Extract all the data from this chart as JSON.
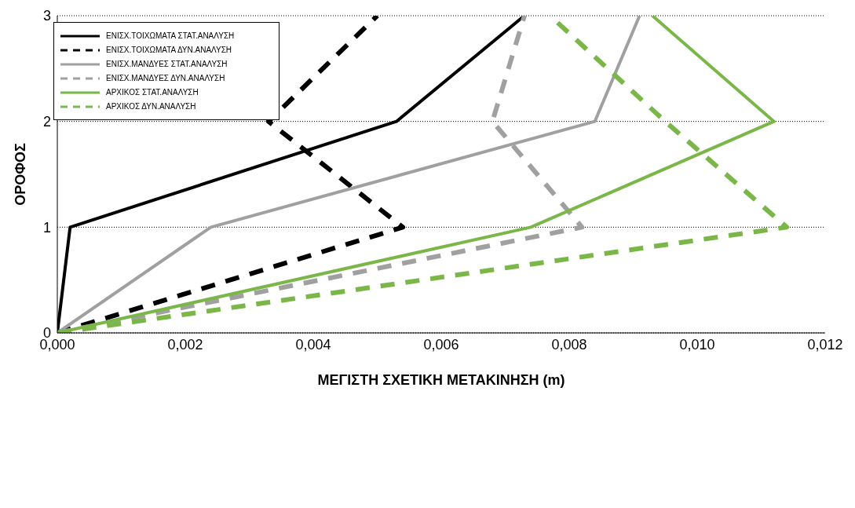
{
  "chart_data": {
    "type": "line",
    "xlabel": "ΜΕΓΙΣΤΗ  ΣΧΕΤΙΚΗ ΜΕΤΑΚΙΝΗΣΗ (m)",
    "ylabel": "ΟΡΟΦΟΣ",
    "xlim": [
      0,
      0.012
    ],
    "xticks": [
      {
        "value": 0,
        "label": "0,000"
      },
      {
        "value": 0.002,
        "label": "0,002"
      },
      {
        "value": 0.004,
        "label": "0,004"
      },
      {
        "value": 0.006,
        "label": "0,006"
      },
      {
        "value": 0.008,
        "label": "0,008"
      },
      {
        "value": 0.01,
        "label": "0,010"
      },
      {
        "value": 0.012,
        "label": "0,012"
      }
    ],
    "ylim": [
      0,
      3
    ],
    "yticks": [
      0,
      1,
      2,
      3
    ],
    "grid": "y",
    "legend": "top left",
    "marker": "none",
    "series": [
      {
        "name": "ΕΝΙΣΧ.ΤΟΙΧΩΜΑΤΑ ΣΤΑΤ.ΑΝΑΛΥΣΗ",
        "color": "#000000",
        "line_style": "solid",
        "x": [
          0,
          0.0002,
          0.0053,
          0.0073
        ],
        "values": [
          0,
          1,
          2,
          3
        ]
      },
      {
        "name": "ΕΝΙΣΧ.ΤΟΙΧΩΜΑΤΑ ΔΥΝ.ΑΝΑΛΥΣΗ",
        "color": "#000000",
        "line_style": "dashed",
        "x": [
          0,
          0.0054,
          0.0033,
          0.005
        ],
        "values": [
          0,
          1,
          2,
          3
        ]
      },
      {
        "name": "ΕΝΙΣΧ.ΜΑΝΔΥΕΣ ΣΤΑΤ.ΑΝΑΛΥΣΗ",
        "color": "#a0a0a0",
        "line_style": "solid",
        "x": [
          0,
          0.0024,
          0.0084,
          0.0091
        ],
        "values": [
          0,
          1,
          2,
          3
        ]
      },
      {
        "name": "ΕΝΙΣΧ.ΜΑΝΔΥΕΣ ΔΥΝ.ΑΝΑΛΥΣΗ",
        "color": "#a0a0a0",
        "line_style": "dashed",
        "x": [
          0,
          0.0082,
          0.0068,
          0.0073
        ],
        "values": [
          0,
          1,
          2,
          3
        ]
      },
      {
        "name": "ΑΡΧΙΚΟΣ ΣΤΑΤ.ΑΝΑΛΥΣΗ",
        "color": "#7ab648",
        "line_style": "solid",
        "x": [
          0,
          0.0074,
          0.0112,
          0.0093
        ],
        "values": [
          0,
          1,
          2,
          3
        ]
      },
      {
        "name": "ΑΡΧΙΚΟΣ ΔΥΝ.ΑΝΑΛΥΣΗ",
        "color": "#7ab648",
        "line_style": "dashed",
        "x": [
          0,
          0.0114,
          0.0095,
          0.0077
        ],
        "values": [
          0,
          1,
          2,
          3
        ]
      }
    ]
  }
}
